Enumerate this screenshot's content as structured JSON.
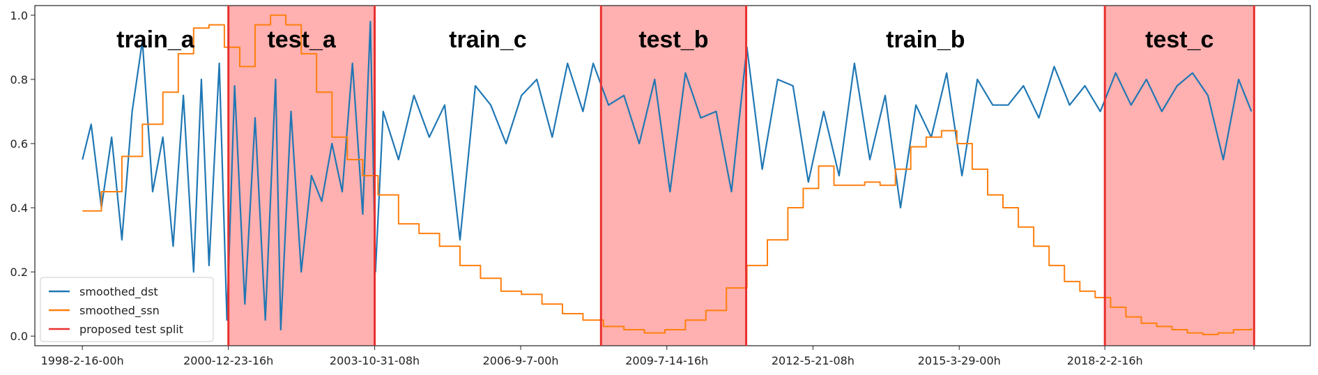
{
  "chart_data": {
    "type": "line",
    "title": "",
    "xlabel": "",
    "ylabel": "",
    "ylim": [
      -0.03,
      1.03
    ],
    "x_ticks": [
      "1998-2-16-00h",
      "2000-12-23-16h",
      "2003-10-31-08h",
      "2006-9-7-00h",
      "2009-7-14-16h",
      "2012-5-21-08h",
      "2015-3-29-00h",
      "2018-2-2-16h"
    ],
    "y_ticks": [
      "0.0",
      "0.2",
      "0.4",
      "0.6",
      "0.8",
      "1.0"
    ],
    "y_tick_values": [
      0.0,
      0.2,
      0.4,
      0.6,
      0.8,
      1.0
    ],
    "regions": [
      {
        "label": "train_a",
        "start": "1998-2-16-00h",
        "end": "2000-12-23-16h",
        "type": "train"
      },
      {
        "label": "test_a",
        "start": "2000-12-23-16h",
        "end": "2003-10-31-08h",
        "type": "test"
      },
      {
        "label": "train_c",
        "start": "2003-10-31-08h",
        "end": "2008-4-1-00h",
        "type": "train"
      },
      {
        "label": "test_b",
        "start": "2008-4-1-00h",
        "end": "2011-2-1-00h",
        "type": "test"
      },
      {
        "label": "train_b",
        "start": "2011-2-1-00h",
        "end": "2018-2-2-16h",
        "type": "train"
      },
      {
        "label": "test_c",
        "start": "2018-2-2-16h",
        "end": "2021-1-1-00h",
        "type": "test"
      }
    ],
    "legend": {
      "placement": "lower-left",
      "entries": [
        {
          "name": "smoothed_dst",
          "color": "#1f77b4"
        },
        {
          "name": "smoothed_ssn",
          "color": "#ff7f0e"
        },
        {
          "name": "proposed test split",
          "color": "#e8302e"
        }
      ]
    },
    "series": [
      {
        "name": "smoothed_dst",
        "color": "#1f77b4",
        "note_x": "x in years",
        "x": [
          1998.13,
          1998.3,
          1998.5,
          1998.7,
          1998.9,
          1999.1,
          1999.3,
          1999.5,
          1999.7,
          1999.9,
          2000.1,
          2000.3,
          2000.45,
          2000.6,
          2000.8,
          2000.95,
          2001.1,
          2001.3,
          2001.5,
          2001.7,
          2001.9,
          2002.0,
          2002.2,
          2002.4,
          2002.6,
          2002.8,
          2003.0,
          2003.2,
          2003.4,
          2003.6,
          2003.75,
          2003.85,
          2004.0,
          2004.3,
          2004.6,
          2004.9,
          2005.2,
          2005.5,
          2005.8,
          2006.1,
          2006.4,
          2006.7,
          2007.0,
          2007.3,
          2007.6,
          2007.9,
          2008.1,
          2008.4,
          2008.7,
          2009.0,
          2009.3,
          2009.6,
          2009.9,
          2010.2,
          2010.5,
          2010.8,
          2011.1,
          2011.4,
          2011.7,
          2012.0,
          2012.3,
          2012.6,
          2012.9,
          2013.2,
          2013.5,
          2013.8,
          2014.1,
          2014.4,
          2014.7,
          2015.0,
          2015.3,
          2015.6,
          2015.9,
          2016.2,
          2016.5,
          2016.8,
          2017.1,
          2017.4,
          2017.7,
          2018.0,
          2018.3,
          2018.6,
          2018.9,
          2019.2,
          2019.5,
          2019.8,
          2020.1,
          2020.4,
          2020.7,
          2020.95
        ],
        "y": [
          0.55,
          0.66,
          0.4,
          0.62,
          0.3,
          0.7,
          0.92,
          0.45,
          0.62,
          0.28,
          0.75,
          0.2,
          0.8,
          0.22,
          0.85,
          0.05,
          0.78,
          0.1,
          0.68,
          0.05,
          0.8,
          0.02,
          0.7,
          0.2,
          0.5,
          0.42,
          0.6,
          0.45,
          0.85,
          0.38,
          0.98,
          0.2,
          0.7,
          0.55,
          0.75,
          0.62,
          0.72,
          0.3,
          0.78,
          0.72,
          0.6,
          0.75,
          0.8,
          0.62,
          0.85,
          0.7,
          0.85,
          0.72,
          0.75,
          0.6,
          0.8,
          0.45,
          0.82,
          0.68,
          0.7,
          0.45,
          0.9,
          0.52,
          0.8,
          0.78,
          0.48,
          0.7,
          0.5,
          0.85,
          0.55,
          0.75,
          0.4,
          0.72,
          0.62,
          0.82,
          0.5,
          0.8,
          0.72,
          0.72,
          0.78,
          0.68,
          0.84,
          0.72,
          0.78,
          0.7,
          0.82,
          0.72,
          0.8,
          0.7,
          0.78,
          0.82,
          0.75,
          0.55,
          0.8,
          0.7
        ]
      },
      {
        "name": "smoothed_ssn",
        "color": "#ff7f0e",
        "note_x": "x in years",
        "x": [
          1998.13,
          1998.5,
          1998.9,
          1999.3,
          1999.7,
          2000.0,
          2000.3,
          2000.6,
          2000.9,
          2001.2,
          2001.5,
          2001.8,
          2002.1,
          2002.4,
          2002.7,
          2003.0,
          2003.3,
          2003.6,
          2003.9,
          2004.3,
          2004.7,
          2005.1,
          2005.5,
          2005.9,
          2006.3,
          2006.7,
          2007.1,
          2007.5,
          2007.9,
          2008.3,
          2008.7,
          2009.1,
          2009.5,
          2009.9,
          2010.3,
          2010.7,
          2011.1,
          2011.5,
          2011.9,
          2012.2,
          2012.5,
          2012.8,
          2013.1,
          2013.4,
          2013.7,
          2014.0,
          2014.3,
          2014.6,
          2014.9,
          2015.2,
          2015.5,
          2015.8,
          2016.1,
          2016.4,
          2016.7,
          2017.0,
          2017.3,
          2017.6,
          2017.9,
          2018.2,
          2018.5,
          2018.8,
          2019.1,
          2019.4,
          2019.7,
          2020.0,
          2020.3,
          2020.6,
          2020.95
        ],
        "y": [
          0.39,
          0.45,
          0.56,
          0.66,
          0.76,
          0.88,
          0.96,
          0.97,
          0.9,
          0.84,
          0.97,
          1.0,
          0.97,
          0.88,
          0.76,
          0.62,
          0.55,
          0.5,
          0.44,
          0.35,
          0.32,
          0.28,
          0.22,
          0.18,
          0.14,
          0.13,
          0.1,
          0.07,
          0.05,
          0.03,
          0.02,
          0.01,
          0.02,
          0.05,
          0.08,
          0.15,
          0.22,
          0.3,
          0.4,
          0.46,
          0.53,
          0.47,
          0.47,
          0.48,
          0.47,
          0.52,
          0.59,
          0.62,
          0.64,
          0.6,
          0.52,
          0.44,
          0.4,
          0.34,
          0.28,
          0.22,
          0.17,
          0.14,
          0.12,
          0.09,
          0.06,
          0.04,
          0.03,
          0.02,
          0.01,
          0.005,
          0.01,
          0.02,
          0.025
        ]
      }
    ]
  }
}
